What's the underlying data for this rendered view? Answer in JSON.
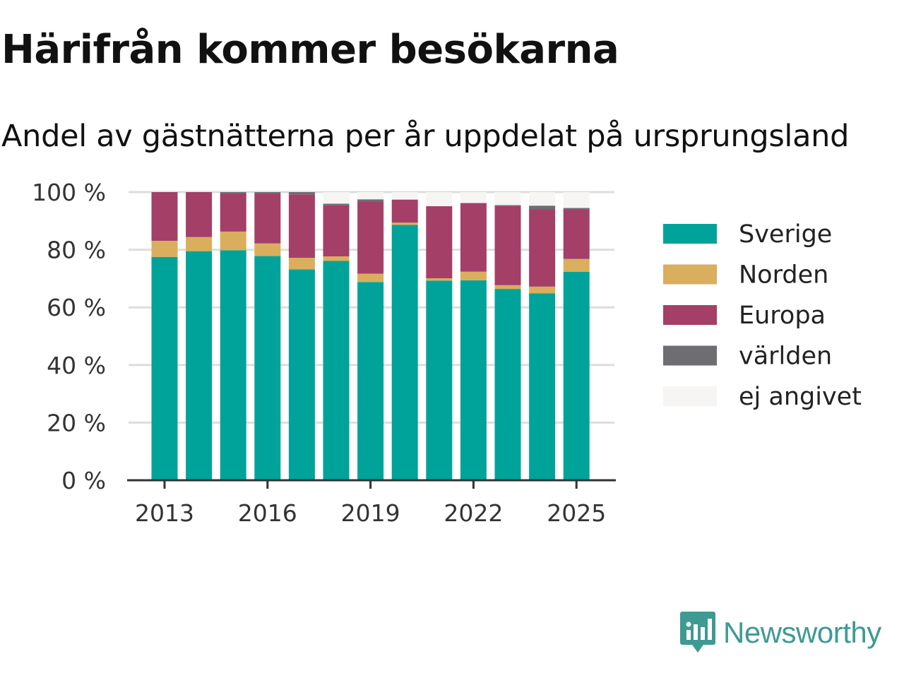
{
  "title": "Härifrån kommer besökarna",
  "subtitle": "Andel av gästnätterna per år uppdelat på ursprungsland",
  "brand": {
    "name": "Newsworthy",
    "icon": "newsworthy-logo-icon",
    "color": "#3e9a93"
  },
  "chart_data": {
    "type": "bar",
    "stacked": true,
    "years": [
      2013,
      2014,
      2015,
      2016,
      2017,
      2018,
      2019,
      2020,
      2021,
      2022,
      2023,
      2024,
      2025
    ],
    "x_ticks": [
      "2013",
      "2016",
      "2019",
      "2022",
      "2025"
    ],
    "y_ticks": [
      "0 %",
      "20 %",
      "40 %",
      "60 %",
      "80 %",
      "100 %"
    ],
    "ylim": [
      0,
      100
    ],
    "grid": true,
    "legend_position": "right",
    "series": [
      {
        "name": "Sverige",
        "color": "#00a39a",
        "values": [
          77.5,
          79.5,
          79.8,
          77.8,
          73.2,
          76.1,
          68.8,
          88.6,
          69.3,
          69.4,
          66.4,
          64.9,
          72.3
        ]
      },
      {
        "name": "Norden",
        "color": "#d9ae5c",
        "values": [
          5.6,
          4.9,
          6.5,
          4.4,
          4.0,
          1.6,
          2.9,
          0.8,
          0.8,
          3.0,
          1.3,
          2.3,
          4.5
        ]
      },
      {
        "name": "Europa",
        "color": "#a43f68",
        "values": [
          16.9,
          15.6,
          13.2,
          17.3,
          22.0,
          17.8,
          25.0,
          8.0,
          25.0,
          23.8,
          27.5,
          26.9,
          17.3
        ]
      },
      {
        "name": "världen",
        "color": "#6e6d72",
        "values": [
          0.0,
          0.0,
          0.5,
          0.5,
          0.8,
          0.5,
          0.8,
          0.0,
          0.0,
          0.0,
          0.3,
          1.2,
          0.4
        ]
      },
      {
        "name": "ej angivet",
        "color": "#f6f5f3",
        "values": [
          0.0,
          0.0,
          0.0,
          0.0,
          0.0,
          4.0,
          2.5,
          2.6,
          4.9,
          3.8,
          4.5,
          4.7,
          5.5
        ]
      }
    ]
  }
}
